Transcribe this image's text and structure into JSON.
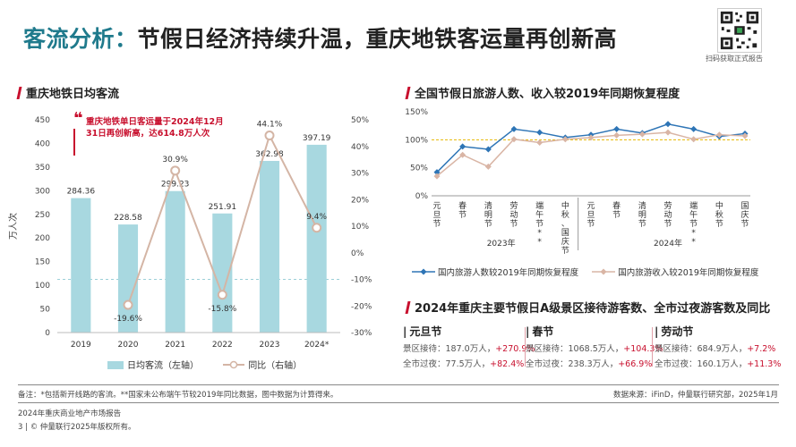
{
  "header": {
    "title_prefix": "客流分析：",
    "title_main": "节假日经济持续升温，重庆地铁客运量再创新高",
    "qr_caption": "扫码获取正式报告"
  },
  "left_panel": {
    "title": "重庆地铁日均客流",
    "callout": "重庆地铁单日客运量于2024年12月31日再创新高，达614.8万人次",
    "legend_bar": "日均客流（左轴）",
    "legend_line": "同比（右轴）"
  },
  "right_top_panel": {
    "title": "全国节假日旅游人数、收入较2019年同期恢复程度",
    "legend_1": "国内旅游人数较2019年同期恢复程度",
    "legend_2": "国内旅游收入较2019年同期恢复程度"
  },
  "right_bottom_panel": {
    "title": "2024年重庆主要节假日A级景区接待游客数、全市过夜游客数及同比",
    "holidays": [
      {
        "name": "元旦节",
        "scenic_label": "景区接待：",
        "scenic_value": "187.0万人，",
        "scenic_pct": "+270.9%",
        "overnight_label": "全市过夜：",
        "overnight_value": "77.5万人，",
        "overnight_pct": "+82.4%"
      },
      {
        "name": "春节",
        "scenic_label": "景区接待：",
        "scenic_value": "1068.5万人，",
        "scenic_pct": "+104.3%",
        "overnight_label": "全市过夜：",
        "overnight_value": "238.3万人，",
        "overnight_pct": "+66.9%"
      },
      {
        "name": "劳动节",
        "scenic_label": "景区接待：",
        "scenic_value": "684.9万人，",
        "scenic_pct": "+7.2%",
        "overnight_label": "全市过夜：",
        "overnight_value": "160.1万人，",
        "overnight_pct": "+11.3%"
      }
    ]
  },
  "footer": {
    "notes": "备注：*包括新开线路的客流。**国家未公布端午节较2019年同比数据，图中数据为计算得来。",
    "source": "数据来源：iFinD，仲量联行研究部，2025年1月",
    "report_name": "2024年重庆商业地产市场报告",
    "page_number": "3",
    "copyright": "© 仲量联行2025年版权所有。"
  },
  "colors": {
    "bar": "#a8d8e0",
    "yoy_line": "#d4b5a5",
    "tourist_count": "#2e75b6",
    "tourist_revenue": "#d9b5a5",
    "ref_dashed": "#9bcfd8",
    "accent_red": "#c8102e"
  },
  "chart_data": [
    {
      "type": "bar",
      "title": "重庆地铁日均客流",
      "categories": [
        "2019",
        "2020",
        "2021",
        "2022",
        "2023",
        "2024*"
      ],
      "series": [
        {
          "name": "日均客流（左轴）",
          "axis": "left",
          "type": "bar",
          "values": [
            284.36,
            228.58,
            299.23,
            251.91,
            362.98,
            397.19
          ],
          "labels": [
            "284.36",
            "228.58",
            "299.23",
            "251.91",
            "362.98",
            "397.19"
          ]
        },
        {
          "name": "同比（右轴）",
          "axis": "right",
          "type": "line",
          "values": [
            null,
            -19.6,
            30.9,
            -15.8,
            44.1,
            9.4
          ],
          "labels": [
            "",
            "-19.6%",
            "30.9%",
            "-15.8%",
            "44.1%",
            "9.4%"
          ]
        }
      ],
      "ylabel": "万人次",
      "ylim": [
        0,
        450
      ],
      "y_ticks": [
        "0",
        "50",
        "100",
        "150",
        "200",
        "250",
        "300",
        "350",
        "400",
        "450"
      ],
      "y2lim": [
        -30,
        50
      ],
      "y2_ticks": [
        "-30%",
        "-20%",
        "-10%",
        "0%",
        "10%",
        "20%",
        "30%",
        "40%",
        "50%"
      ],
      "reference_line": -10,
      "legend": "bottom"
    },
    {
      "type": "line",
      "title": "全国节假日旅游人数、收入较2019年同期恢复程度",
      "categories": [
        "元旦节",
        "春节",
        "清明节",
        "劳动节",
        "端午节**",
        "中秋、国庆节",
        "元旦节",
        "春节",
        "清明节",
        "劳动节",
        "端午节**",
        "中秋节",
        "国庆节"
      ],
      "category_groups": [
        {
          "label": "2023年",
          "span": 6
        },
        {
          "label": "2024年",
          "span": 7
        }
      ],
      "series": [
        {
          "name": "国内旅游人数较2019年同期恢复程度",
          "values": [
            42,
            88,
            83,
            119,
            113,
            104,
            109,
            119,
            112,
            128,
            119,
            106,
            111
          ]
        },
        {
          "name": "国内旅游收入较2019年同期恢复程度",
          "values": [
            35,
            73,
            52,
            101,
            95,
            101,
            104,
            108,
            110,
            113,
            101,
            109,
            107
          ]
        }
      ],
      "ylim": [
        0,
        150
      ],
      "y_ticks": [
        "0%",
        "50%",
        "100%",
        "150%"
      ],
      "reference_line": 100,
      "legend": "bottom"
    }
  ]
}
